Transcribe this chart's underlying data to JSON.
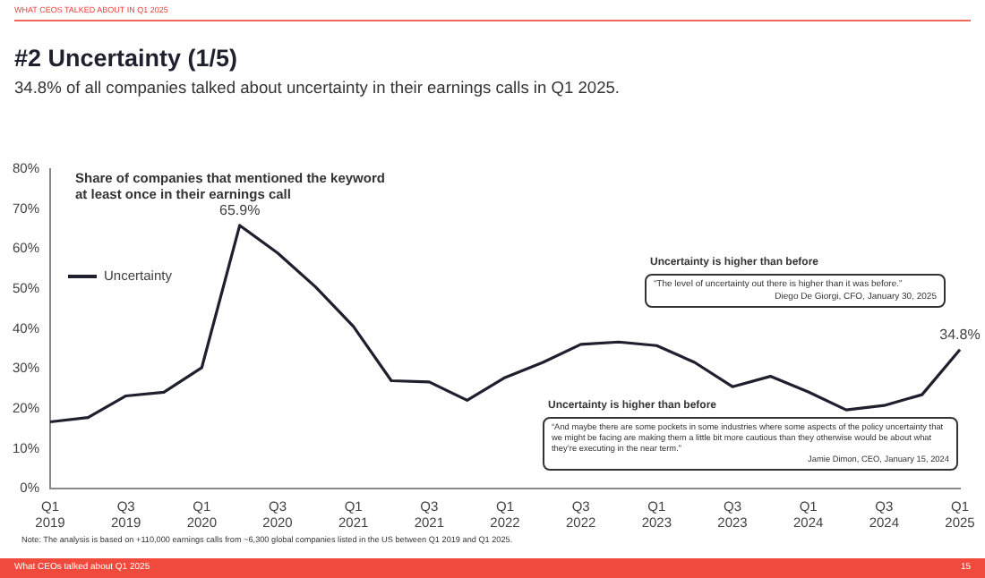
{
  "chart_data": {
    "type": "line",
    "title": "#2 Uncertainty (1/5)",
    "subtitle": "34.8% of all companies talked about uncertainty in their earnings calls in Q1 2025.",
    "categories": [
      "Q1 2019",
      null,
      "Q3 2019",
      null,
      "Q1 2020",
      null,
      "Q3 2020",
      null,
      "Q1 2021",
      null,
      "Q3 2021",
      null,
      "Q1 2022",
      null,
      "Q3 2022",
      null,
      "Q1 2023",
      null,
      "Q3 2023",
      null,
      "Q1 2024",
      null,
      "Q3 2024",
      null,
      "Q1 2025"
    ],
    "series": [
      {
        "name": "Uncertainty",
        "color": "#1f1f2e",
        "values": [
          16.7,
          17.8,
          23.2,
          24.1,
          30.3,
          65.9,
          59.0,
          50.5,
          40.6,
          27.0,
          26.7,
          22.1,
          27.8,
          31.6,
          36.1,
          36.7,
          35.8,
          31.6,
          25.5,
          28.1,
          24.2,
          19.7,
          20.8,
          23.5,
          34.8
        ],
        "value_labels": [
          null,
          null,
          null,
          null,
          null,
          "65.9%",
          null,
          null,
          null,
          null,
          null,
          null,
          null,
          null,
          null,
          null,
          null,
          null,
          null,
          null,
          null,
          null,
          null,
          null,
          "34.8%"
        ]
      }
    ],
    "ylim": [
      0,
      80
    ],
    "yticks": [
      {
        "value": 0,
        "label": "0%"
      },
      {
        "value": 10,
        "label": "10%"
      },
      {
        "value": 20,
        "label": "20%"
      },
      {
        "value": 30,
        "label": "30%"
      },
      {
        "value": 40,
        "label": "40%"
      },
      {
        "value": 50,
        "label": "50%"
      },
      {
        "value": 60,
        "label": "60%"
      },
      {
        "value": 70,
        "label": "70%"
      },
      {
        "value": 80,
        "label": "80%"
      }
    ],
    "grid": false,
    "legend": "top left",
    "marker": "none",
    "line_style": "solid",
    "annotations": [
      "WHAT CEOS TALKED ABOUT IN Q1 2025",
      "Share of companies that mentioned the keyword at least once in their earnings call",
      "Uncertainty is higher than before",
      "“The level of uncertainty out there is higher than it was before.”",
      "Diego De Giorgi, CFO, January 30, 2025",
      "Uncertainty is higher than before",
      "“And maybe there are some pockets in some industries where some aspects of the policy uncertainty that we might be facing are making them a little bit more cautious than they otherwise would be about what they’re executing in the near term.”",
      "Jamie Dimon, CEO, January 15, 2024",
      "Note: The analysis is based on +110,000 earnings calls from ~6,300 global companies listed in the US between Q1 2019 and Q1 2025.",
      "What CEOs talked about Q1 2025",
      "15"
    ]
  }
}
